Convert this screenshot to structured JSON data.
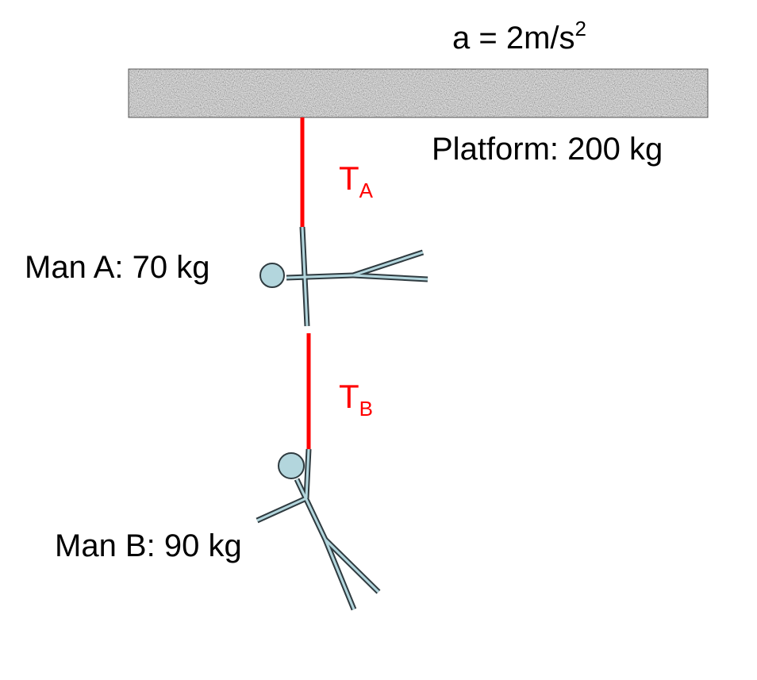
{
  "acceleration": {
    "prefix": "a = 2m/s",
    "exponent": "2"
  },
  "platform": {
    "label": "Platform: 200 kg"
  },
  "tension_a": {
    "symbol": "T",
    "subscript": "A"
  },
  "tension_b": {
    "symbol": "T",
    "subscript": "B"
  },
  "man_a": {
    "label": "Man A: 70 kg"
  },
  "man_b": {
    "label": "Man B: 90 kg"
  },
  "colors": {
    "rope": "#ff0000",
    "tension_text": "#ff0000",
    "figure_fill": "#b3d6dd",
    "figure_stroke": "#2f3b40",
    "platform_fill": "#b0b0b0",
    "text": "#000000"
  }
}
